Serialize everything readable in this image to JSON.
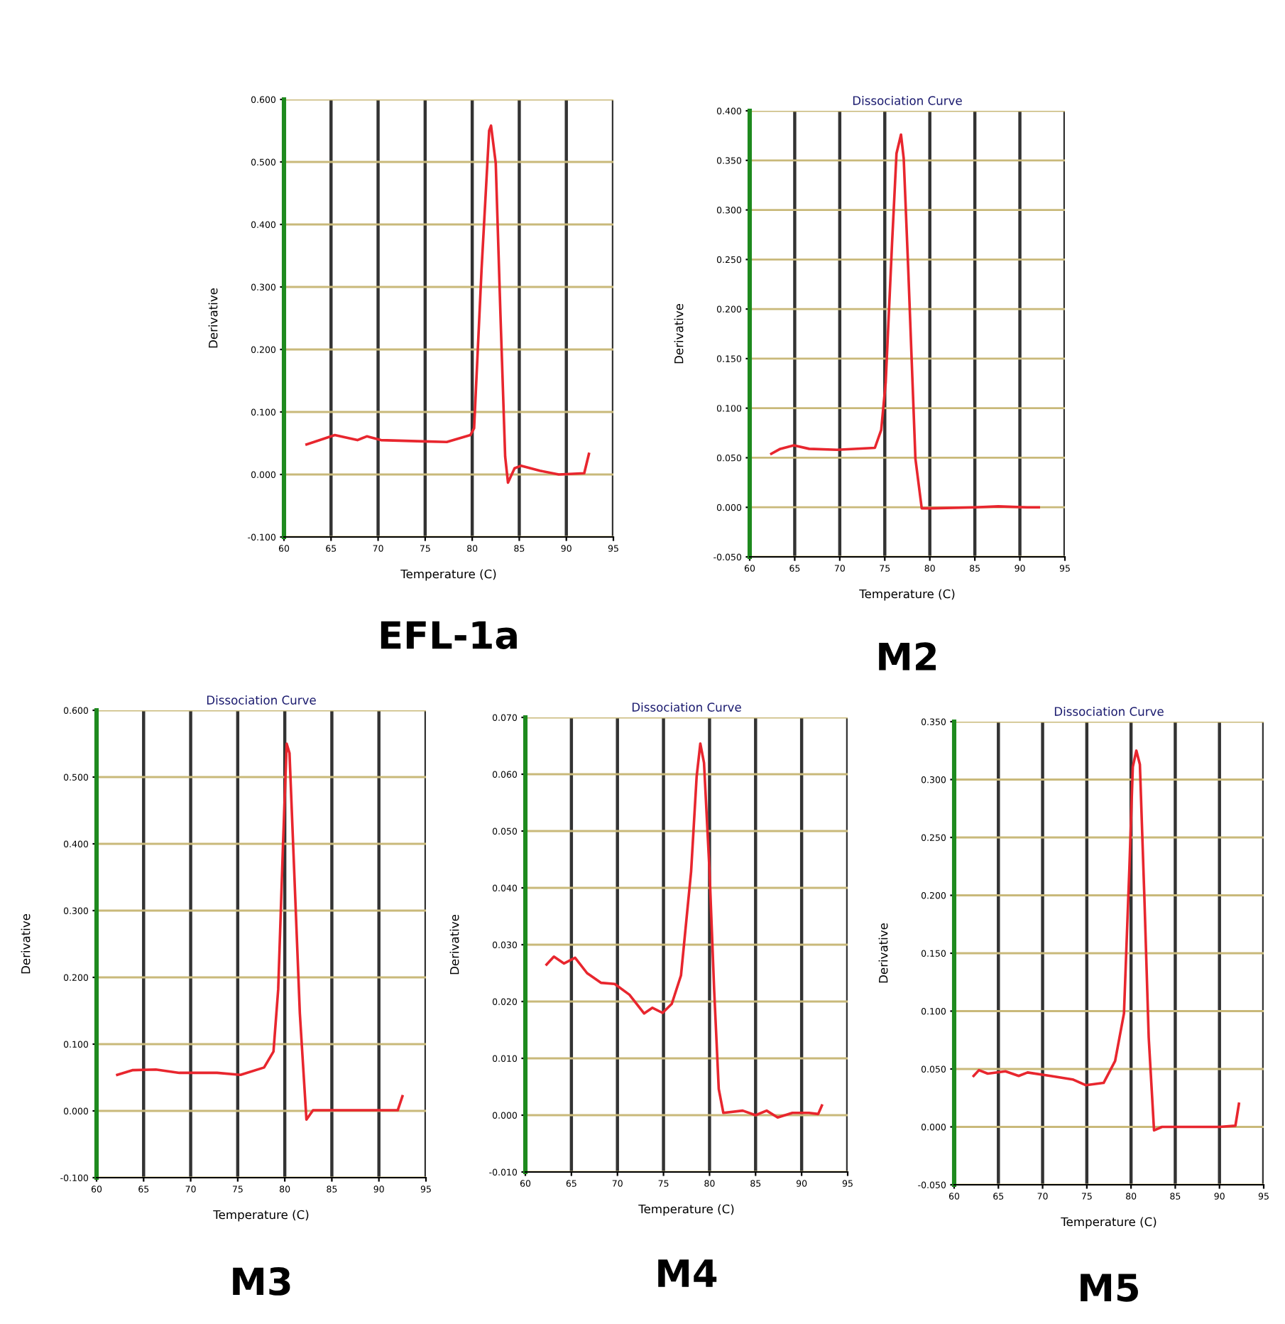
{
  "chart_data": [
    {
      "type": "line",
      "xlabel": "Temperature (C)",
      "ylabel": "Derivative",
      "annotations": [
        "EFL-1a"
      ],
      "grid": true,
      "xlim": [
        60,
        95
      ],
      "xticks": [
        60,
        65,
        70,
        75,
        80,
        85,
        90,
        95
      ],
      "ylim": [
        -0.1,
        0.6
      ],
      "yticks": [
        {
          "value": -0.1,
          "label": "-0.100"
        },
        {
          "value": 0,
          "label": "0.000"
        },
        {
          "value": 0.1,
          "label": "0.100"
        },
        {
          "value": 0.2,
          "label": "0.200"
        },
        {
          "value": 0.3,
          "label": "0.300"
        },
        {
          "value": 0.4,
          "label": "0.400"
        },
        {
          "value": 0.5,
          "label": "0.500"
        },
        {
          "value": 0.6,
          "label": "0.600"
        }
      ],
      "x": [
        62.4,
        65.4,
        67.8,
        68.8,
        70.3,
        74.8,
        77.3,
        79.8,
        80.2,
        81.0,
        81.8,
        82.0,
        82.5,
        83.0,
        83.5,
        83.8,
        84.5,
        85.2,
        87.2,
        89.2,
        91.9,
        92.4
      ],
      "series": [
        {
          "color": "#e8262e",
          "values": [
            0.048,
            0.063,
            0.055,
            0.061,
            0.055,
            0.053,
            0.052,
            0.063,
            0.074,
            0.33,
            0.55,
            0.558,
            0.498,
            0.256,
            0.029,
            -0.013,
            0.01,
            0.014,
            0.006,
            0,
            0.002,
            0.033
          ]
        }
      ]
    },
    {
      "type": "line",
      "title": "Dissociation Curve",
      "xlabel": "Temperature (C)",
      "ylabel": "Derivative",
      "annotations": [
        "M2"
      ],
      "grid": true,
      "xlim": [
        60,
        95
      ],
      "xticks": [
        60,
        65,
        70,
        75,
        80,
        85,
        90,
        95
      ],
      "ylim": [
        -0.05,
        0.4
      ],
      "yticks": [
        {
          "value": -0.05,
          "label": "-0.050"
        },
        {
          "value": 0,
          "label": "0.000"
        },
        {
          "value": 0.05,
          "label": "0.050"
        },
        {
          "value": 0.1,
          "label": "0.100"
        },
        {
          "value": 0.15,
          "label": "0.150"
        },
        {
          "value": 0.2,
          "label": "0.200"
        },
        {
          "value": 0.25,
          "label": "0.250"
        },
        {
          "value": 0.3,
          "label": "0.300"
        },
        {
          "value": 0.35,
          "label": "0.350"
        },
        {
          "value": 0.4,
          "label": "0.400"
        }
      ],
      "x": [
        62.4,
        63.4,
        64.9,
        66.6,
        69.7,
        73.9,
        74.6,
        75.1,
        75.8,
        76.3,
        76.8,
        77.1,
        77.6,
        78.4,
        79.1,
        80.3,
        85.0,
        87.6,
        90.8,
        92.1
      ],
      "series": [
        {
          "color": "#e8262e",
          "values": [
            0.054,
            0.059,
            0.0625,
            0.059,
            0.058,
            0.06,
            0.078,
            0.126,
            0.265,
            0.357,
            0.376,
            0.352,
            0.241,
            0.049,
            -0.001,
            -0.001,
            0,
            0.001,
            0,
            0
          ]
        }
      ]
    },
    {
      "type": "line",
      "title": "Dissociation Curve",
      "xlabel": "Temperature (C)",
      "ylabel": "Derivative",
      "annotations": [
        "M3"
      ],
      "grid": true,
      "xlim": [
        60,
        95
      ],
      "xticks": [
        60,
        65,
        70,
        75,
        80,
        85,
        90,
        95
      ],
      "ylim": [
        -0.1,
        0.6
      ],
      "yticks": [
        {
          "value": -0.1,
          "label": "-0.100"
        },
        {
          "value": 0,
          "label": "0.000"
        },
        {
          "value": 0.1,
          "label": "0.100"
        },
        {
          "value": 0.2,
          "label": "0.200"
        },
        {
          "value": 0.3,
          "label": "0.300"
        },
        {
          "value": 0.4,
          "label": "0.400"
        },
        {
          "value": 0.5,
          "label": "0.500"
        },
        {
          "value": 0.6,
          "label": "0.600"
        }
      ],
      "x": [
        62.2,
        63.8,
        66.3,
        68.8,
        72.8,
        75.3,
        77.8,
        78.8,
        79.3,
        79.8,
        80.2,
        80.5,
        81.0,
        81.6,
        82.3,
        83.0,
        85.3,
        87.8,
        92.0,
        92.5
      ],
      "series": [
        {
          "color": "#e8262e",
          "values": [
            0.054,
            0.061,
            0.062,
            0.057,
            0.057,
            0.054,
            0.065,
            0.089,
            0.182,
            0.394,
            0.55,
            0.536,
            0.359,
            0.146,
            -0.013,
            0.001,
            0.001,
            0.001,
            0.001,
            0.022
          ]
        }
      ]
    },
    {
      "type": "line",
      "title": "Dissociation Curve",
      "xlabel": "Temperature (C)",
      "ylabel": "Derivative",
      "annotations": [
        "M4"
      ],
      "grid": true,
      "xlim": [
        60,
        95
      ],
      "xticks": [
        60,
        65,
        70,
        75,
        80,
        85,
        90,
        95
      ],
      "ylim": [
        -0.01,
        0.07
      ],
      "yticks": [
        {
          "value": -0.01,
          "label": "-0.010"
        },
        {
          "value": 0,
          "label": "0.000"
        },
        {
          "value": 0.01,
          "label": "0.010"
        },
        {
          "value": 0.02,
          "label": "0.020"
        },
        {
          "value": 0.03,
          "label": "0.030"
        },
        {
          "value": 0.04,
          "label": "0.040"
        },
        {
          "value": 0.05,
          "label": "0.050"
        },
        {
          "value": 0.06,
          "label": "0.060"
        },
        {
          "value": 0.07,
          "label": "0.070"
        }
      ],
      "x": [
        62.3,
        63.1,
        64.2,
        65.4,
        66.7,
        68.2,
        69.7,
        71.3,
        72.9,
        73.8,
        74.9,
        75.9,
        76.9,
        78.0,
        78.6,
        79.0,
        79.4,
        80.0,
        80.5,
        81.0,
        81.5,
        83.6,
        85.0,
        86.2,
        87.4,
        89.0,
        90.8,
        91.8,
        92.2
      ],
      "series": [
        {
          "color": "#e8262e",
          "values": [
            0.0265,
            0.0279,
            0.0267,
            0.0277,
            0.025,
            0.0233,
            0.0231,
            0.0212,
            0.0179,
            0.0189,
            0.018,
            0.0196,
            0.0246,
            0.0429,
            0.0596,
            0.0654,
            0.062,
            0.0429,
            0.0221,
            0.0046,
            0.0004,
            0.0008,
            0,
            0.0008,
            -0.0004,
            0.0004,
            0.0004,
            0.0002,
            0.0017
          ]
        }
      ]
    },
    {
      "type": "line",
      "title": "Dissociation Curve",
      "xlabel": "Temperature (C)",
      "ylabel": "Derivative",
      "annotations": [
        "M5"
      ],
      "grid": true,
      "xlim": [
        60,
        95
      ],
      "xticks": [
        60,
        65,
        70,
        75,
        80,
        85,
        90,
        95
      ],
      "ylim": [
        -0.05,
        0.35
      ],
      "yticks": [
        {
          "value": -0.05,
          "label": "-0.050"
        },
        {
          "value": 0,
          "label": "0.000"
        },
        {
          "value": 0.05,
          "label": "0.050"
        },
        {
          "value": 0.1,
          "label": "0.100"
        },
        {
          "value": 0.15,
          "label": "0.150"
        },
        {
          "value": 0.2,
          "label": "0.200"
        },
        {
          "value": 0.25,
          "label": "0.250"
        },
        {
          "value": 0.3,
          "label": "0.300"
        },
        {
          "value": 0.35,
          "label": "0.350"
        }
      ],
      "x": [
        62.2,
        62.8,
        63.8,
        65.8,
        67.3,
        68.3,
        70.9,
        73.4,
        74.9,
        76.9,
        78.2,
        79.2,
        79.8,
        80.2,
        80.6,
        81.0,
        81.5,
        82.0,
        82.6,
        83.5,
        86.0,
        90.0,
        91.8,
        92.2
      ],
      "series": [
        {
          "color": "#e8262e",
          "values": [
            0.044,
            0.049,
            0.046,
            0.048,
            0.044,
            0.047,
            0.044,
            0.041,
            0.036,
            0.038,
            0.057,
            0.098,
            0.221,
            0.311,
            0.325,
            0.313,
            0.2,
            0.077,
            -0.003,
            0,
            0,
            0,
            0.001,
            0.02
          ]
        }
      ]
    }
  ]
}
